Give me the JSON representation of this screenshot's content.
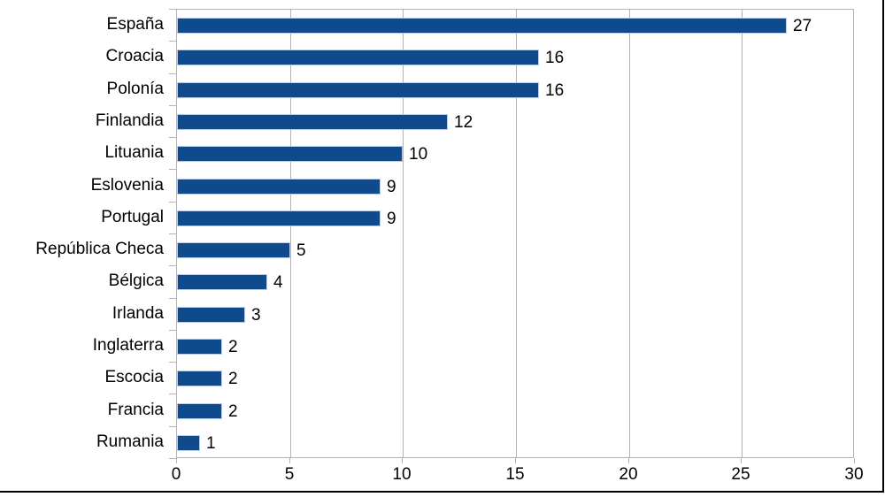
{
  "chart_data": {
    "type": "bar",
    "orientation": "horizontal",
    "title": "",
    "xlabel": "",
    "ylabel": "",
    "categories": [
      "España",
      "Croacia",
      "Polonía",
      "Finlandia",
      "Lituania",
      "Eslovenia",
      "Portugal",
      "República Checa",
      "Bélgica",
      "Irlanda",
      "Inglaterra",
      "Escocia",
      "Francia",
      "Rumania"
    ],
    "values": [
      27,
      16,
      16,
      12,
      10,
      9,
      9,
      5,
      4,
      3,
      2,
      2,
      2,
      1
    ],
    "data_labels": [
      "27",
      "16",
      "16",
      "12",
      "10",
      "9",
      "9",
      "5",
      "4",
      "3",
      "2",
      "2",
      "2",
      "1"
    ],
    "xlim": [
      0,
      30
    ],
    "x_ticks": [
      0,
      5,
      10,
      15,
      20,
      25,
      30
    ],
    "x_tick_labels": [
      "0",
      "5",
      "10",
      "15",
      "20",
      "25",
      "30"
    ],
    "grid": "vertical",
    "legend": "none",
    "colors": {
      "bar_fill": "#0f4b8c",
      "bar_border": "#b7cde9",
      "grid": "#b3b3b3",
      "text": "#000000",
      "background": "#ffffff",
      "frame": "#000000"
    }
  }
}
